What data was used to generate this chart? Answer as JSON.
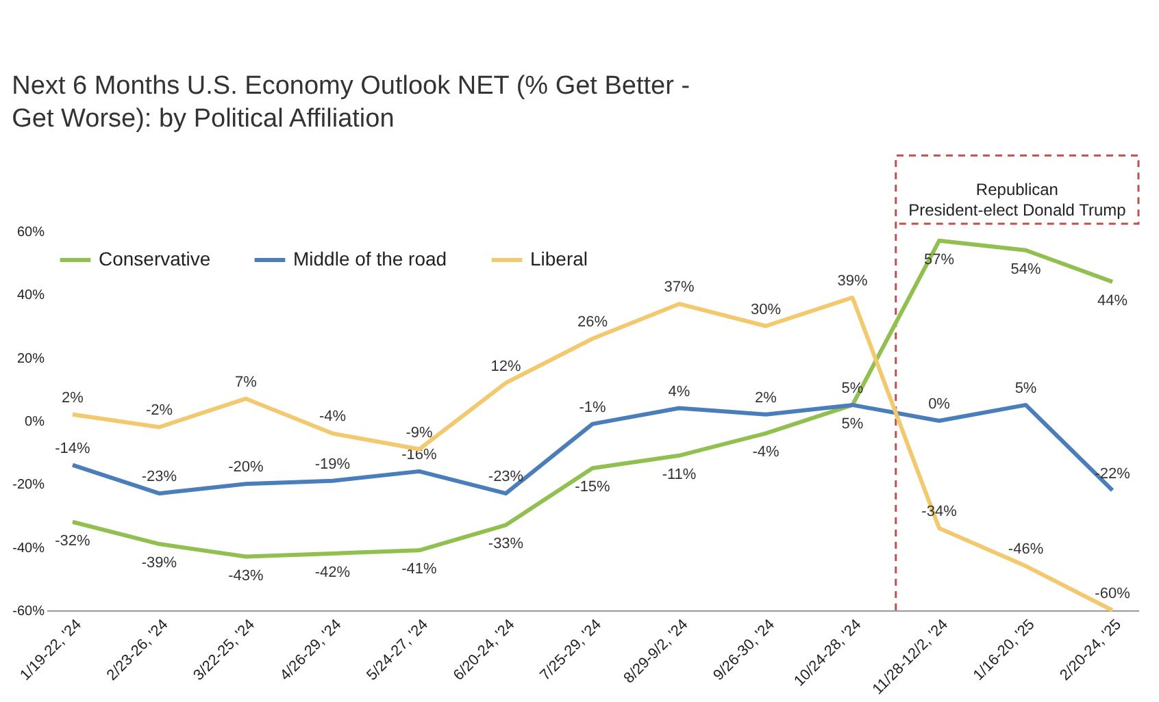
{
  "chart_data": {
    "type": "line",
    "title": "Next 6 Months U.S. Economy Outlook NET (% Get Better - Get Worse): by Political Affiliation",
    "categories": [
      "1/19-22, '24",
      "2/23-26, '24",
      "3/22-25, '24",
      "4/26-29, '24",
      "5/24-27, '24",
      "6/20-24, '24",
      "7/25-29, '24",
      "8/29-9/2, '24",
      "9/26-30, '24",
      "10/24-28, '24",
      "11/28-12/2, '24",
      "1/16-20, '25",
      "2/20-24, '25"
    ],
    "series": [
      {
        "name": "Conservative",
        "color": "#92c050",
        "values": [
          -32,
          -39,
          -43,
          -42,
          -41,
          -33,
          -15,
          -11,
          -4,
          5,
          57,
          54,
          44
        ],
        "value_labels": [
          "-32%",
          "-39%",
          "-43%",
          "-42%",
          "-41%",
          "-33%",
          "-15%",
          "-11%",
          "-4%",
          "5%",
          "57%",
          "54%",
          "44%"
        ]
      },
      {
        "name": "Middle of the road",
        "color": "#4a7ebb",
        "values": [
          -14,
          -23,
          -20,
          -19,
          -16,
          -23,
          -1,
          4,
          2,
          5,
          0,
          5,
          -22
        ],
        "value_labels": [
          "-14%",
          "-23%",
          "-20%",
          "-19%",
          "-16%",
          "-23%",
          "-1%",
          "4%",
          "2%",
          "5%",
          "0%",
          "5%",
          "-22%"
        ]
      },
      {
        "name": "Liberal",
        "color": "#f2c96e",
        "values": [
          2,
          -2,
          7,
          -4,
          -9,
          12,
          26,
          37,
          30,
          39,
          -34,
          -46,
          -60
        ],
        "value_labels": [
          "2%",
          "-2%",
          "7%",
          "-4%",
          "-9%",
          "12%",
          "26%",
          "37%",
          "30%",
          "39%",
          "-34%",
          "-46%",
          "-60%"
        ]
      }
    ],
    "ylim": [
      -60,
      60
    ],
    "yticks": [
      {
        "value": -60,
        "label": "-60%"
      },
      {
        "value": -40,
        "label": "-40%"
      },
      {
        "value": -20,
        "label": "-20%"
      },
      {
        "value": 0,
        "label": "0%"
      },
      {
        "value": 20,
        "label": "20%"
      },
      {
        "value": 40,
        "label": "40%"
      },
      {
        "value": 60,
        "label": "60%"
      }
    ],
    "annotations": [
      "Republican President-elect Donald Trump"
    ],
    "legend": "top left"
  }
}
